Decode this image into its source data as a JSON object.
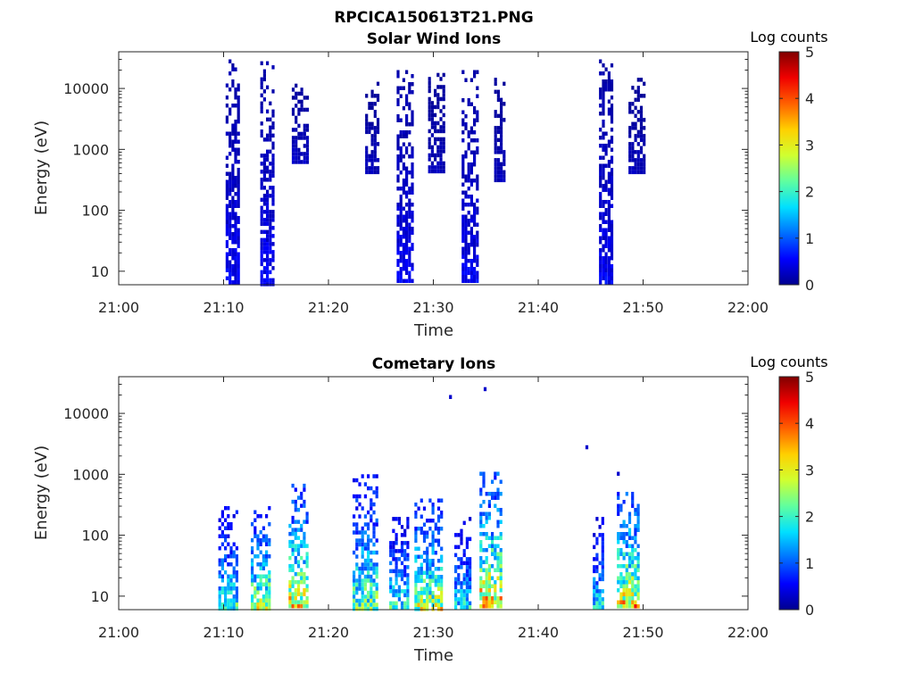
{
  "figure": {
    "title": "RPCICA150613T21.PNG"
  },
  "colorbar": {
    "label": "Log counts",
    "ticks": [
      0,
      1,
      2,
      3,
      4,
      5
    ],
    "stops": [
      "#00008f",
      "#0000ff",
      "#0070ff",
      "#00e0ff",
      "#60ff9f",
      "#d0ff30",
      "#ffd000",
      "#ff6000",
      "#f00000",
      "#800000"
    ]
  },
  "chart_data": [
    {
      "type": "heatmap",
      "title": "Solar Wind Ions",
      "xlabel": "Time",
      "ylabel": "Energy (eV)",
      "x_ticks": [
        "21:00",
        "21:10",
        "21:20",
        "21:30",
        "21:40",
        "21:50",
        "22:00"
      ],
      "xlim": [
        "21:00",
        "22:00"
      ],
      "y_scale": "log",
      "y_ticks": [
        10,
        100,
        1000,
        10000
      ],
      "ylim": [
        6,
        40000
      ],
      "clim": [
        0,
        5
      ],
      "clusters": [
        {
          "t": [
            "21:10.2",
            "21:11.5"
          ],
          "e": [
            6,
            30000
          ],
          "level": 0.35
        },
        {
          "t": [
            "21:13.5",
            "21:14.9"
          ],
          "e": [
            6,
            28000
          ],
          "level": 0.35
        },
        {
          "t": [
            "21:16.5",
            "21:18.0"
          ],
          "e": [
            600,
            12000
          ],
          "level": 0.2
        },
        {
          "t": [
            "21:23.5",
            "21:24.8"
          ],
          "e": [
            400,
            15000
          ],
          "level": 0.15
        },
        {
          "t": [
            "21:26.5",
            "21:28.2"
          ],
          "e": [
            6,
            20000
          ],
          "level": 0.35
        },
        {
          "t": [
            "21:29.5",
            "21:31.0"
          ],
          "e": [
            400,
            18000
          ],
          "level": 0.15
        },
        {
          "t": [
            "21:32.7",
            "21:34.2"
          ],
          "e": [
            6,
            20000
          ],
          "level": 0.35
        },
        {
          "t": [
            "21:35.8",
            "21:37.0"
          ],
          "e": [
            300,
            15000
          ],
          "level": 0.15
        },
        {
          "t": [
            "21:45.8",
            "21:47.2"
          ],
          "e": [
            6,
            30000
          ],
          "level": 0.35
        },
        {
          "t": [
            "21:48.6",
            "21:50.2"
          ],
          "e": [
            400,
            15000
          ],
          "level": 0.15
        }
      ]
    },
    {
      "type": "heatmap",
      "title": "Cometary Ions",
      "xlabel": "Time",
      "ylabel": "Energy (eV)",
      "x_ticks": [
        "21:00",
        "21:10",
        "21:20",
        "21:30",
        "21:40",
        "21:50",
        "22:00"
      ],
      "xlim": [
        "21:00",
        "22:00"
      ],
      "y_scale": "log",
      "y_ticks": [
        10,
        100,
        1000,
        10000
      ],
      "ylim": [
        6,
        40000
      ],
      "clim": [
        0,
        5
      ],
      "clusters": [
        {
          "t": [
            "21:09.5",
            "21:11.3"
          ],
          "e": [
            6,
            300
          ],
          "level": 1.4
        },
        {
          "t": [
            "21:12.6",
            "21:14.4"
          ],
          "e": [
            6,
            300
          ],
          "level": 1.9
        },
        {
          "t": [
            "21:16.2",
            "21:18.0"
          ],
          "e": [
            6,
            700
          ],
          "level": 2.1
        },
        {
          "t": [
            "21:22.3",
            "21:24.8"
          ],
          "e": [
            6,
            1000
          ],
          "level": 1.6
        },
        {
          "t": [
            "21:25.8",
            "21:27.6"
          ],
          "e": [
            6,
            200
          ],
          "level": 1.3
        },
        {
          "t": [
            "21:28.2",
            "21:30.8"
          ],
          "e": [
            6,
            400
          ],
          "level": 1.9
        },
        {
          "t": [
            "21:32.0",
            "21:33.7"
          ],
          "e": [
            6,
            200
          ],
          "level": 1.2
        },
        {
          "t": [
            "21:34.4",
            "21:36.6"
          ],
          "e": [
            6,
            1100
          ],
          "level": 2.3
        },
        {
          "t": [
            "21:45.2",
            "21:46.4"
          ],
          "e": [
            6,
            200
          ],
          "level": 1.2
        },
        {
          "t": [
            "21:47.5",
            "21:49.6"
          ],
          "e": [
            6,
            600
          ],
          "level": 2.2
        }
      ],
      "outliers": [
        {
          "t": "21:31.5",
          "e": 20000
        },
        {
          "t": "21:34.8",
          "e": 27000
        },
        {
          "t": "21:44.5",
          "e": 3000
        },
        {
          "t": "21:47.5",
          "e": 1100
        }
      ]
    }
  ]
}
